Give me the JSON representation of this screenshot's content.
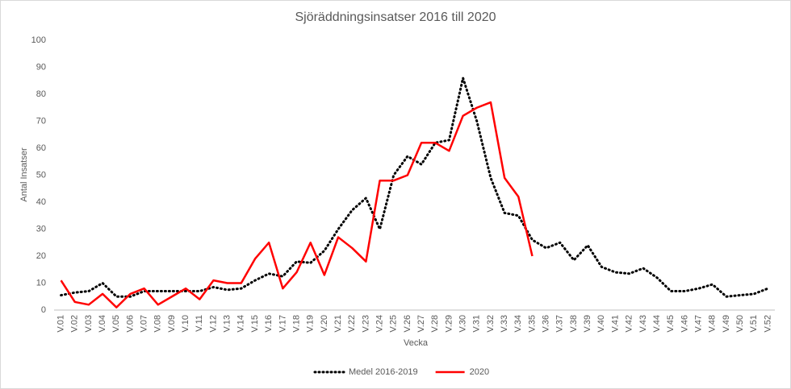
{
  "chart_data": {
    "type": "line",
    "title": "Sjöräddningsinsatser  2016 till 2020",
    "xlabel": "Vecka",
    "ylabel": "Antal Insatser",
    "categories": [
      "V.01",
      "V.02",
      "V.03",
      "V.04",
      "V.05",
      "V.06",
      "V.07",
      "V.08",
      "V.09",
      "V.10",
      "V.11",
      "V.12",
      "V.13",
      "V.14",
      "V.15",
      "V.16",
      "V.17",
      "V.18",
      "V.19",
      "V.20",
      "V.21",
      "V.22",
      "V.23",
      "V.24",
      "V.25",
      "V.26",
      "V.27",
      "V.28",
      "V.29",
      "V.30",
      "V.31",
      "V.32",
      "V.33",
      "V.34",
      "V.35",
      "V.36",
      "V.37",
      "V.38",
      "V.39",
      "V.40",
      "V.41",
      "V.42",
      "V.43",
      "V.44",
      "V.45",
      "V.46",
      "V.47",
      "V.48",
      "V.49",
      "V.50",
      "V.51",
      "V.52"
    ],
    "series": [
      {
        "name": "Medel 2016-2019",
        "color": "#000000",
        "dash": "dotted",
        "values": [
          5.5,
          6.5,
          7,
          10,
          5,
          5,
          7,
          7,
          7,
          7,
          7,
          8.5,
          7.5,
          8,
          11,
          13.5,
          12.5,
          18,
          17.5,
          22,
          30,
          37,
          41.5,
          30,
          50,
          57,
          54,
          62,
          63,
          86,
          70,
          49,
          36,
          35,
          26,
          23,
          25,
          18.5,
          24,
          16,
          14,
          13.5,
          15.5,
          12,
          7,
          7,
          8,
          9.5,
          5,
          5.5,
          6,
          8
        ]
      },
      {
        "name": "2020",
        "color": "#ff0000",
        "dash": "solid",
        "values": [
          11,
          3,
          2,
          6,
          1,
          6,
          8,
          2,
          5,
          8,
          4,
          11,
          10,
          10,
          19,
          25,
          8,
          14,
          25,
          13,
          27,
          23,
          18,
          48,
          48,
          50,
          62,
          62,
          59,
          72,
          75,
          77,
          49,
          42,
          20,
          null,
          null,
          null,
          null,
          null,
          null,
          null,
          null,
          null,
          null,
          null,
          null,
          null,
          null,
          null,
          null,
          null
        ]
      }
    ],
    "ylim": [
      0,
      100
    ],
    "yticks": [
      0,
      10,
      20,
      30,
      40,
      50,
      60,
      70,
      80,
      90,
      100
    ],
    "grid": false,
    "legend": "bottom"
  }
}
